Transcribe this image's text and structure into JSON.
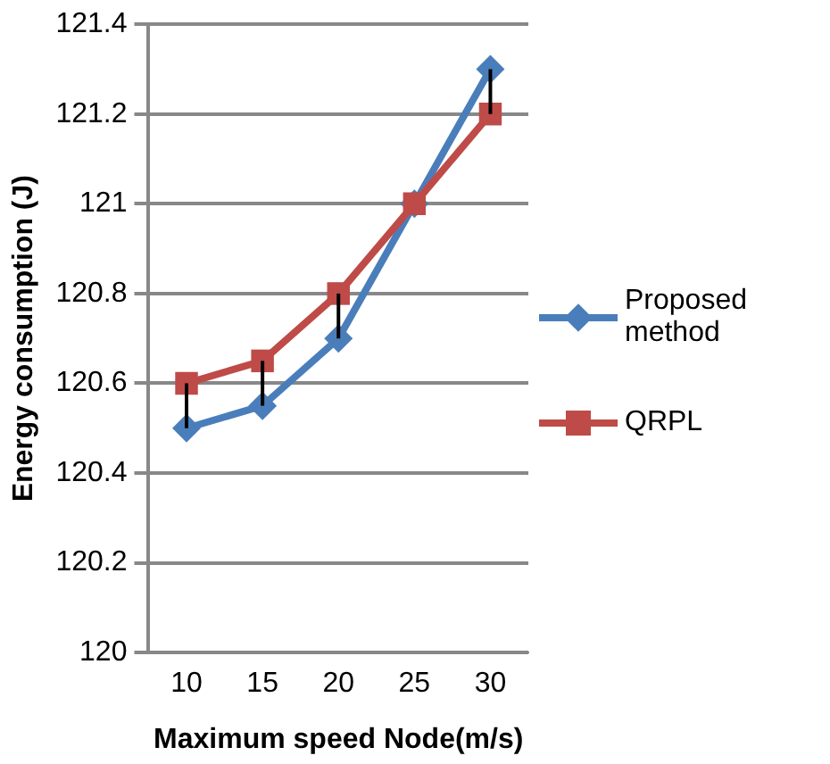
{
  "chart_data": {
    "type": "line",
    "xlabel": "Maximum speed Node(m/s)",
    "ylabel": "Energy consumption (J)",
    "categories": [
      "10",
      "15",
      "20",
      "25",
      "30"
    ],
    "series": [
      {
        "name": "Proposed method",
        "color": "#4a7ebb",
        "marker": "diamond",
        "values": [
          120.5,
          120.55,
          120.7,
          121,
          121.3
        ]
      },
      {
        "name": "QRPL",
        "color": "#be4b48",
        "marker": "square",
        "values": [
          120.6,
          120.65,
          120.8,
          121,
          121.2
        ],
        "errors": [
          [
            120.5,
            120.6
          ],
          [
            120.55,
            120.65
          ],
          [
            120.7,
            120.8
          ],
          null,
          [
            121.2,
            121.3
          ]
        ]
      }
    ],
    "ylim": [
      120,
      121.4
    ],
    "yticks": [
      120,
      120.2,
      120.4,
      120.6,
      120.8,
      121,
      121.2,
      121.4
    ],
    "grid": "y",
    "legend": "right"
  }
}
